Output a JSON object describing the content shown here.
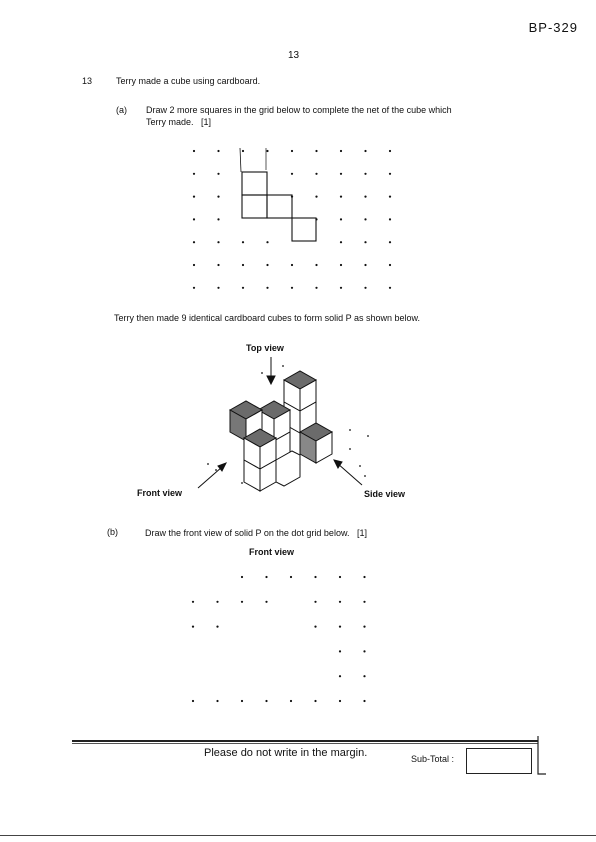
{
  "header": {
    "code": "BP-329",
    "page_number": "13"
  },
  "question": {
    "number": "13",
    "stem": "Terry made a cube using cardboard.",
    "part_a": {
      "label": "(a)",
      "line1": "Draw 2 more squares in the grid below to complete the net of the cube which",
      "line2": "Terry made.",
      "marks": "[1]"
    },
    "middle_text": "Terry then made 9 identical cardboard cubes to form solid P as shown below.",
    "figure_labels": {
      "top_view": "Top view",
      "front_view": "Front view",
      "side_view": "Side view"
    },
    "part_b": {
      "label": "(b)",
      "text": "Draw the front view of solid P on the dot grid below.",
      "marks": "[1]",
      "grid_title": "Front view"
    }
  },
  "footer": {
    "margin_note": "Please do not write in the margin.",
    "subtotal_label": "Sub-Total :",
    "subtotal_value": ""
  },
  "colors": {
    "ink": "#111111",
    "shade": "#5a5a5a"
  }
}
